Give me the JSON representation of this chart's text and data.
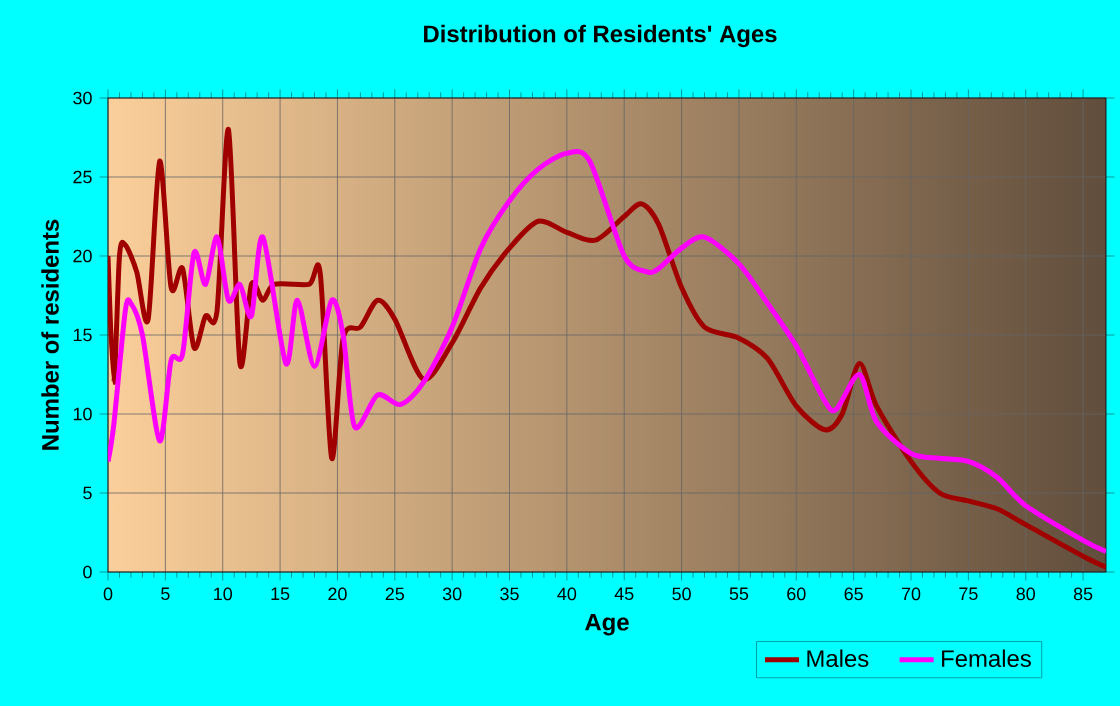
{
  "chart_data": {
    "type": "line",
    "title": "Distribution of Residents' Ages",
    "xlabel": "Age",
    "ylabel": "Number of residents",
    "xlim": [
      0,
      87
    ],
    "xticks": [
      0,
      5,
      10,
      15,
      20,
      25,
      30,
      35,
      40,
      45,
      50,
      55,
      60,
      65,
      70,
      75,
      80,
      85
    ],
    "ylim": [
      0,
      30
    ],
    "yticks": [
      0,
      5,
      10,
      15,
      20,
      25,
      30
    ],
    "grid": true,
    "legend": "bottom right",
    "marker": "none",
    "line_style": "solid",
    "series": [
      {
        "name": "Males",
        "color": "#a00000",
        "x": [
          0,
          0.5,
          1,
          1.5,
          2.5,
          3.5,
          4.5,
          5.5,
          6.5,
          7.5,
          8.5,
          9.5,
          10.5,
          11.5,
          12.5,
          13.5,
          14.5,
          17.5,
          18.5,
          19.5,
          20.5,
          22,
          23.5,
          25,
          27.5,
          30,
          32.5,
          35,
          37.5,
          40,
          42.5,
          45,
          46.5,
          48,
          50,
          52,
          55,
          57.5,
          60,
          62.5,
          64,
          65.5,
          67,
          70,
          72.5,
          75,
          77.5,
          80,
          85,
          87
        ],
        "values": [
          20,
          12,
          20,
          20.7,
          19,
          16,
          26,
          18,
          19.2,
          14.2,
          16.2,
          16.5,
          28,
          13.2,
          18.2,
          17.2,
          18.2,
          18.2,
          18.9,
          7.2,
          14.8,
          15.5,
          17.2,
          16,
          12.2,
          14.5,
          18,
          20.5,
          22.2,
          21.5,
          21,
          22.5,
          23.3,
          22,
          18,
          15.5,
          14.8,
          13.5,
          10.5,
          9,
          10,
          13.2,
          10.5,
          7,
          5,
          4.5,
          4,
          3,
          1,
          0.3
        ]
      },
      {
        "name": "Females",
        "color": "#ff00ff",
        "x": [
          0,
          0.5,
          1.5,
          2,
          3,
          4.5,
          5.5,
          6.5,
          7.5,
          8.5,
          9.5,
          10.5,
          11.5,
          12.5,
          13.5,
          15.5,
          16.5,
          18,
          19.5,
          20.5,
          21.5,
          23.5,
          25.5,
          27.5,
          30,
          32.5,
          35,
          37.5,
          40,
          42,
          45,
          47,
          48,
          50,
          52,
          55,
          57.5,
          60,
          62.5,
          63.5,
          65.5,
          67,
          70,
          72.5,
          75,
          77.5,
          80,
          85,
          87
        ],
        "values": [
          7,
          9.3,
          16.5,
          17,
          15,
          8.3,
          13.4,
          13.8,
          20.2,
          18.2,
          21.2,
          17.2,
          18.2,
          16.2,
          21.2,
          13.2,
          17.2,
          13,
          17.2,
          15,
          9.2,
          11.2,
          10.6,
          12,
          15.5,
          20.5,
          23.5,
          25.5,
          26.5,
          26,
          20,
          19,
          19.2,
          20.5,
          21.2,
          19.5,
          17,
          14.3,
          10.8,
          10.3,
          12.5,
          9.5,
          7.5,
          7.2,
          7,
          6,
          4.2,
          2,
          1.3
        ]
      }
    ]
  }
}
